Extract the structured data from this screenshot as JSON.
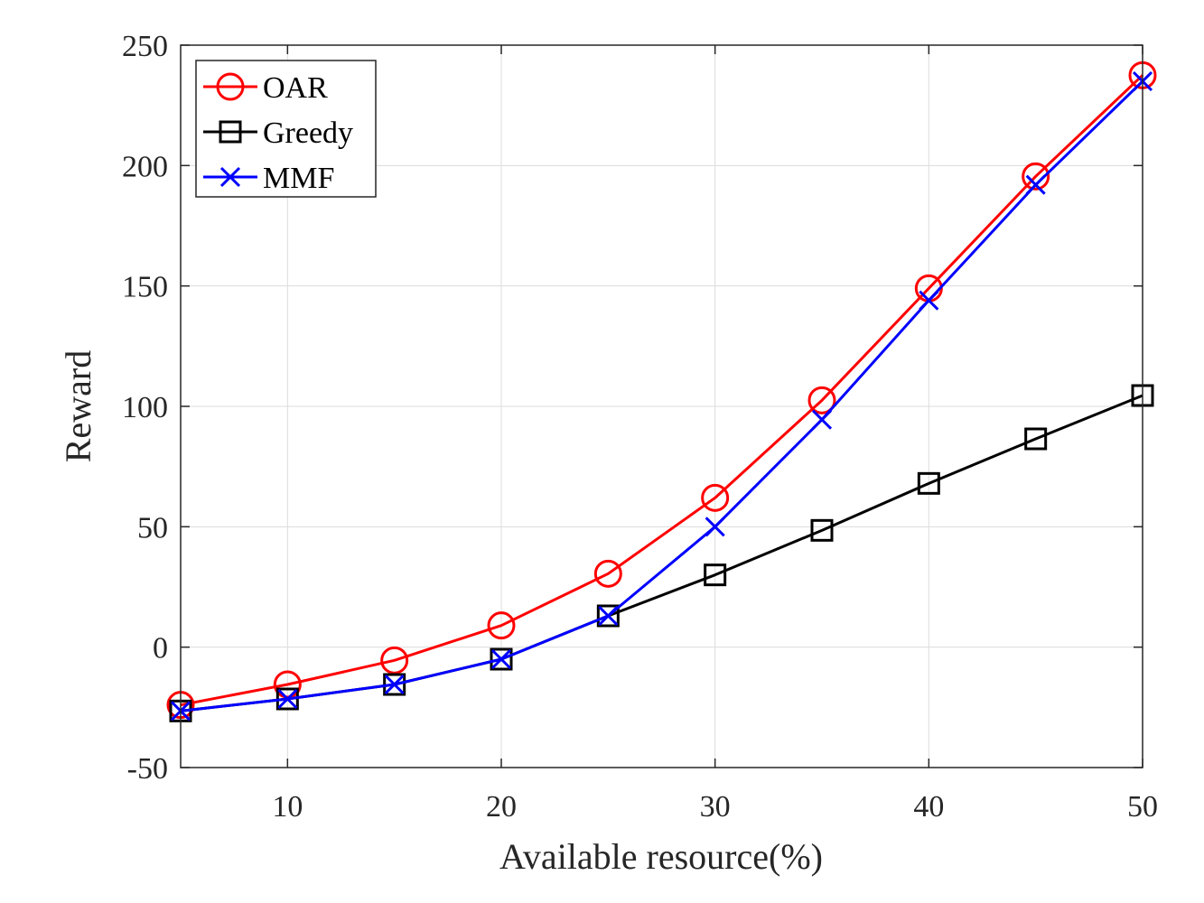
{
  "chart_data": {
    "type": "line",
    "title": "",
    "xlabel": "Available resource(%)",
    "ylabel": "Reward",
    "xlim": [
      5,
      50
    ],
    "ylim": [
      -50,
      250
    ],
    "xticks": [
      10,
      20,
      30,
      40,
      50
    ],
    "xtick_labels": [
      "10",
      "20",
      "30",
      "40",
      "50"
    ],
    "yticks": [
      -50,
      0,
      50,
      100,
      150,
      200,
      250
    ],
    "ytick_labels": [
      "-50",
      "0",
      "50",
      "100",
      "150",
      "200",
      "250"
    ],
    "grid": true,
    "legend_position": "top-left",
    "x": [
      5,
      10,
      15,
      20,
      25,
      30,
      35,
      40,
      45,
      50
    ],
    "series": [
      {
        "name": "OAR",
        "color": "#ff0000",
        "marker": "circle",
        "values": [
          -24,
          -15.5,
          -5.5,
          9,
          30.5,
          62,
          102.5,
          149,
          195.5,
          237.5
        ]
      },
      {
        "name": "Greedy",
        "color": "#000000",
        "marker": "square",
        "values": [
          -26.5,
          -21.5,
          -15.5,
          -5,
          13,
          30,
          48.5,
          68,
          86.5,
          104.5
        ]
      },
      {
        "name": "MMF",
        "color": "#0000ff",
        "marker": "x",
        "values": [
          -26.5,
          -21.5,
          -15.5,
          -5,
          13,
          50,
          94.5,
          144,
          192,
          235
        ]
      }
    ]
  }
}
